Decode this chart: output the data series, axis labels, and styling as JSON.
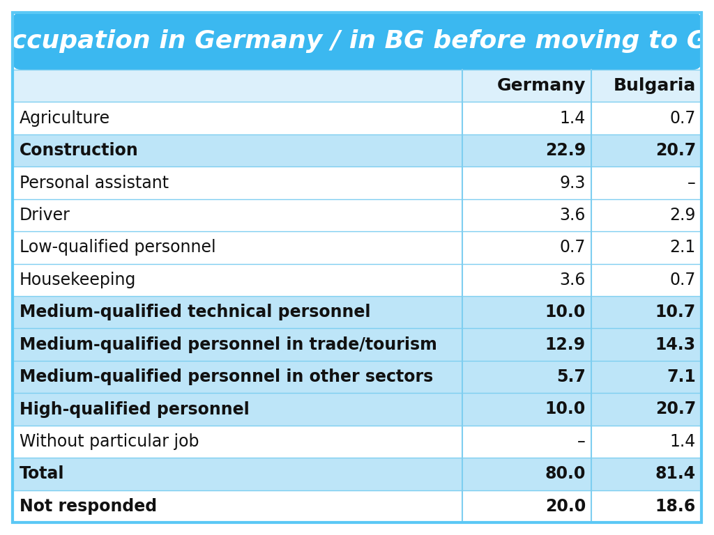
{
  "title": "Occupation in Germany / in BG before moving to GE",
  "title_bg_color": "#3BB8F0",
  "title_text_color": "#FFFFFF",
  "rows": [
    {
      "label": "Agriculture",
      "germany": "1.4",
      "bulgaria": "0.7",
      "bold": false,
      "shaded": false
    },
    {
      "label": "Construction",
      "germany": "22.9",
      "bulgaria": "20.7",
      "bold": true,
      "shaded": true
    },
    {
      "label": "Personal assistant",
      "germany": "9.3",
      "bulgaria": "–",
      "bold": false,
      "shaded": false
    },
    {
      "label": "Driver",
      "germany": "3.6",
      "bulgaria": "2.9",
      "bold": false,
      "shaded": false
    },
    {
      "label": "Low-qualified personnel",
      "germany": "0.7",
      "bulgaria": "2.1",
      "bold": false,
      "shaded": false
    },
    {
      "label": "Housekeeping",
      "germany": "3.6",
      "bulgaria": "0.7",
      "bold": false,
      "shaded": false
    },
    {
      "label": "Medium-qualified technical personnel",
      "germany": "10.0",
      "bulgaria": "10.7",
      "bold": true,
      "shaded": true
    },
    {
      "label": "Medium-qualified personnel in trade/tourism",
      "germany": "12.9",
      "bulgaria": "14.3",
      "bold": true,
      "shaded": true
    },
    {
      "label": "Medium-qualified personnel in other sectors",
      "germany": "5.7",
      "bulgaria": "7.1",
      "bold": true,
      "shaded": true
    },
    {
      "label": "High-qualified personnel",
      "germany": "10.0",
      "bulgaria": "20.7",
      "bold": true,
      "shaded": true
    },
    {
      "label": "Without particular job",
      "germany": "–",
      "bulgaria": "1.4",
      "bold": false,
      "shaded": false
    },
    {
      "label": "Total",
      "germany": "80.0",
      "bulgaria": "81.4",
      "bold": true,
      "shaded": true
    },
    {
      "label": "Not responded",
      "germany": "20.0",
      "bulgaria": "18.6",
      "bold": true,
      "shaded": false
    }
  ],
  "shaded_color": "#BDE5F8",
  "unshaded_color": "#FFFFFF",
  "header_bg_color": "#DCF0FB",
  "text_color": "#111111",
  "divider_color": "#7ECEF0",
  "outer_border_color": "#5BC8F5",
  "fig_bg_color": "#FFFFFF",
  "title_fontsize": 26,
  "header_fontsize": 18,
  "row_fontsize": 17
}
